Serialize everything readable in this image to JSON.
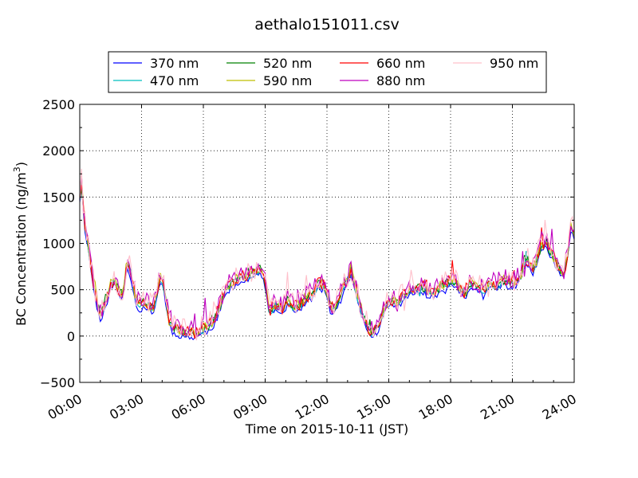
{
  "chart_data": {
    "type": "line",
    "title": "aethalo151011.csv",
    "xlabel": "Time on 2015-10-11 (JST)",
    "ylabel": "BC Concentration (ng/m",
    "ylabel_sup": "3",
    "ylabel_end": ")",
    "xlim": [
      "00:00",
      "24:00"
    ],
    "ylim": [
      -500,
      2500
    ],
    "grid": true,
    "legend_position": "top-center",
    "x_ticks": [
      "00:00",
      "03:00",
      "06:00",
      "09:00",
      "12:00",
      "15:00",
      "18:00",
      "21:00",
      "24:00"
    ],
    "y_ticks": [
      "−500",
      "0",
      "500",
      "1000",
      "1500",
      "2000",
      "2500"
    ],
    "x_tick_values": [
      0,
      3,
      6,
      9,
      12,
      15,
      18,
      21,
      24
    ],
    "y_tick_values": [
      -500,
      0,
      500,
      1000,
      1500,
      2000,
      2500
    ],
    "x_units": "hours since 00:00",
    "base_profile": {
      "x": [
        0.0,
        0.1,
        0.2,
        0.4,
        0.6,
        0.8,
        1.0,
        1.2,
        1.5,
        1.7,
        1.9,
        2.1,
        2.3,
        2.5,
        2.7,
        2.9,
        3.1,
        3.3,
        3.6,
        3.8,
        3.95,
        4.1,
        4.3,
        4.5,
        4.7,
        5.0,
        5.3,
        5.6,
        5.9,
        6.2,
        6.5,
        6.8,
        7.0,
        7.3,
        7.6,
        7.9,
        8.2,
        8.5,
        8.8,
        9.0,
        9.2,
        9.5,
        9.8,
        10.1,
        10.4,
        10.7,
        11.0,
        11.3,
        11.6,
        11.9,
        12.1,
        12.3,
        12.6,
        12.9,
        13.2,
        13.4,
        13.7,
        14.0,
        14.2,
        14.5,
        14.8,
        15.1,
        15.4,
        15.7,
        16.0,
        16.3,
        16.6,
        16.9,
        17.2,
        17.5,
        17.8,
        18.1,
        18.4,
        18.7,
        19.0,
        19.3,
        19.6,
        19.9,
        20.2,
        20.5,
        20.8,
        21.1,
        21.4,
        21.7,
        22.0,
        22.3,
        22.6,
        22.9,
        23.2,
        23.5,
        23.7,
        23.85,
        24.0
      ],
      "y": [
        1500,
        1700,
        1250,
        1000,
        650,
        380,
        220,
        300,
        550,
        600,
        480,
        420,
        800,
        650,
        400,
        300,
        360,
        320,
        300,
        520,
        650,
        500,
        200,
        80,
        50,
        40,
        30,
        20,
        60,
        90,
        150,
        300,
        450,
        550,
        600,
        620,
        650,
        680,
        720,
        560,
        250,
        330,
        270,
        380,
        300,
        330,
        400,
        450,
        560,
        520,
        380,
        250,
        400,
        560,
        700,
        480,
        250,
        80,
        20,
        100,
        300,
        380,
        350,
        420,
        480,
        500,
        520,
        470,
        460,
        520,
        560,
        600,
        520,
        450,
        560,
        520,
        470,
        580,
        520,
        600,
        570,
        560,
        650,
        820,
        700,
        900,
        1000,
        870,
        750,
        650,
        900,
        1200,
        1100
      ]
    },
    "series": [
      {
        "name": "370 nm",
        "color": "#0000ff",
        "offset": -40,
        "noise": 30,
        "seed": 11
      },
      {
        "name": "470 nm",
        "color": "#00bfbf",
        "offset": 0,
        "noise": 40,
        "seed": 23
      },
      {
        "name": "520 nm",
        "color": "#008000",
        "offset": 10,
        "noise": 45,
        "seed": 37
      },
      {
        "name": "590 nm",
        "color": "#bfbf00",
        "offset": 20,
        "noise": 55,
        "seed": 41
      },
      {
        "name": "660 nm",
        "color": "#ff0000",
        "offset": 20,
        "noise": 70,
        "seed": 53
      },
      {
        "name": "880 nm",
        "color": "#bf00bf",
        "offset": 50,
        "noise": 95,
        "seed": 67
      },
      {
        "name": "950 nm",
        "color": "#ffc0cb",
        "offset": 40,
        "noise": 120,
        "seed": 79
      }
    ]
  }
}
